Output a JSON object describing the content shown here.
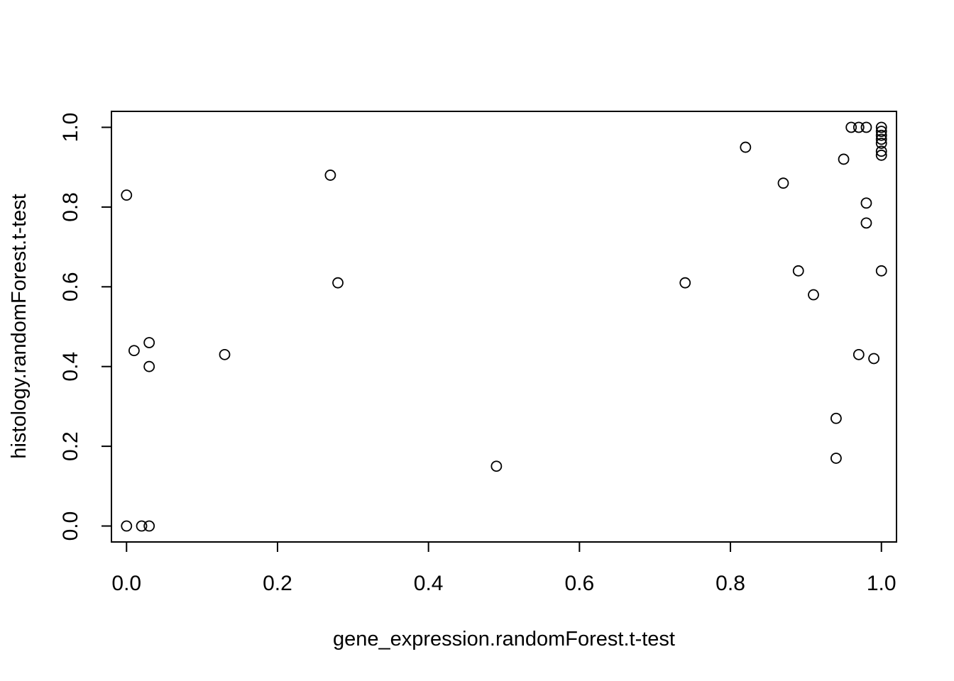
{
  "chart_data": {
    "type": "scatter",
    "xlabel": "gene_expression.randomForest.t-test",
    "ylabel": "histology.randomForest.t-test",
    "xlim": [
      -0.02,
      1.02
    ],
    "ylim": [
      -0.04,
      1.04
    ],
    "x_ticks": [
      "0.0",
      "0.2",
      "0.4",
      "0.6",
      "0.8",
      "1.0"
    ],
    "y_ticks": [
      "0.0",
      "0.2",
      "0.4",
      "0.6",
      "0.8",
      "1.0"
    ],
    "x_tick_values": [
      0,
      0.2,
      0.4,
      0.6,
      0.8,
      1.0
    ],
    "y_tick_values": [
      0,
      0.2,
      0.4,
      0.6,
      0.8,
      1.0
    ],
    "grid": false,
    "marker": "open-circle",
    "points": [
      {
        "x": 0.0,
        "y": 0.83
      },
      {
        "x": 0.01,
        "y": 0.44
      },
      {
        "x": 0.03,
        "y": 0.46
      },
      {
        "x": 0.03,
        "y": 0.4
      },
      {
        "x": 0.0,
        "y": 0.0
      },
      {
        "x": 0.02,
        "y": 0.0
      },
      {
        "x": 0.03,
        "y": 0.0
      },
      {
        "x": 0.13,
        "y": 0.43
      },
      {
        "x": 0.27,
        "y": 0.88
      },
      {
        "x": 0.28,
        "y": 0.61
      },
      {
        "x": 0.49,
        "y": 0.15
      },
      {
        "x": 0.74,
        "y": 0.61
      },
      {
        "x": 0.82,
        "y": 0.95
      },
      {
        "x": 0.87,
        "y": 0.86
      },
      {
        "x": 0.89,
        "y": 0.64
      },
      {
        "x": 0.91,
        "y": 0.58
      },
      {
        "x": 0.94,
        "y": 0.27
      },
      {
        "x": 0.94,
        "y": 0.17
      },
      {
        "x": 0.95,
        "y": 0.92
      },
      {
        "x": 0.96,
        "y": 1.0
      },
      {
        "x": 0.97,
        "y": 1.0
      },
      {
        "x": 0.98,
        "y": 1.0
      },
      {
        "x": 0.97,
        "y": 0.43
      },
      {
        "x": 0.98,
        "y": 0.81
      },
      {
        "x": 0.98,
        "y": 0.76
      },
      {
        "x": 0.99,
        "y": 0.42
      },
      {
        "x": 1.0,
        "y": 1.0
      },
      {
        "x": 1.0,
        "y": 0.99
      },
      {
        "x": 1.0,
        "y": 0.98
      },
      {
        "x": 1.0,
        "y": 0.97
      },
      {
        "x": 1.0,
        "y": 0.96
      },
      {
        "x": 1.0,
        "y": 0.94
      },
      {
        "x": 1.0,
        "y": 0.93
      },
      {
        "x": 1.0,
        "y": 0.64
      }
    ]
  }
}
